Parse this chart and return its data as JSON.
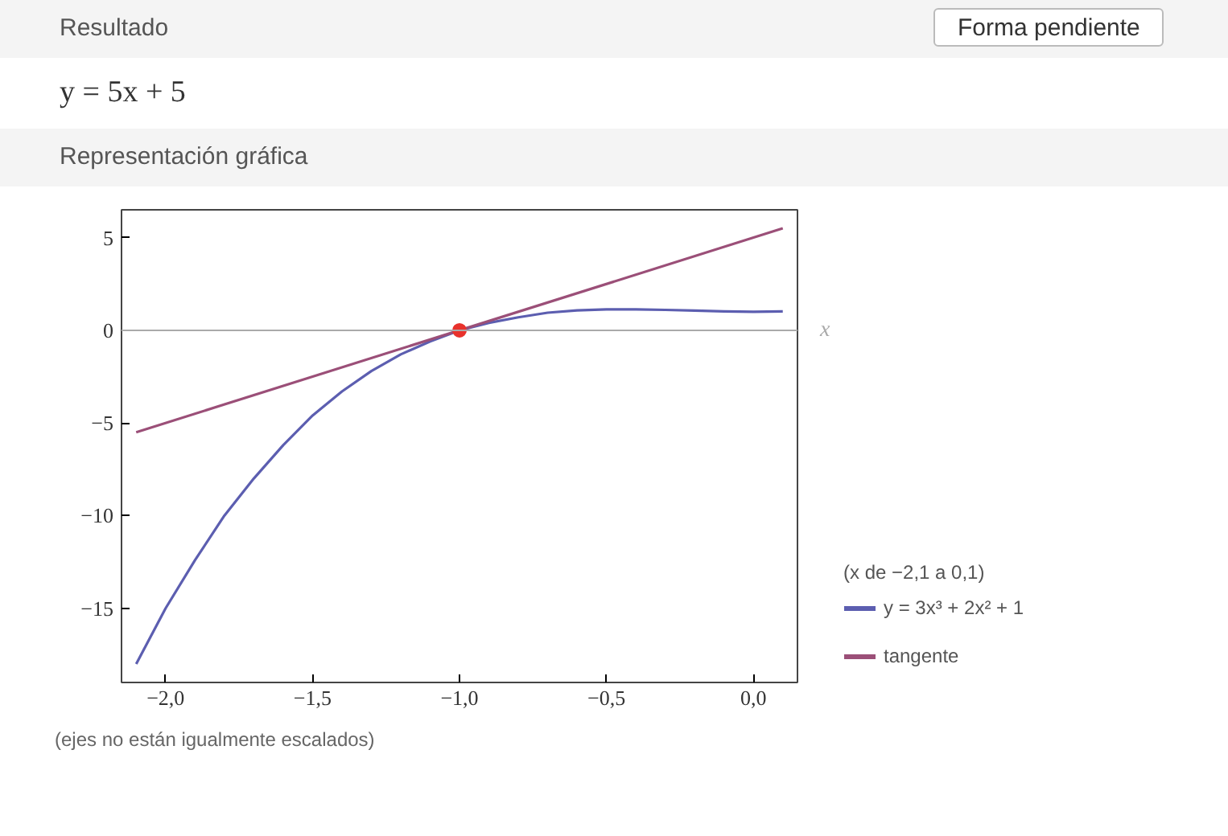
{
  "chart_data": {
    "type": "line",
    "annotations": [
      "Resultado",
      "Forma pendiente",
      "y = 5x + 5",
      "Representación gráfica",
      "(ejes no están igualmente escalados)"
    ],
    "legend_title": "(x de −2,1 a 0,1)",
    "xlabel": "x",
    "x": [
      -2.1,
      -2.0,
      -1.9,
      -1.8,
      -1.7,
      -1.6,
      -1.5,
      -1.4,
      -1.3,
      -1.2,
      -1.1,
      -1.0,
      -0.9,
      -0.8,
      -0.7,
      -0.6,
      -0.5,
      -0.4,
      -0.3,
      -0.2,
      -0.1,
      0.0,
      0.1
    ],
    "series": [
      {
        "name": "y = 3x³ + 2x² + 1",
        "color": "#5c5eb0",
        "values": [
          -18.0,
          -15.0,
          -12.4,
          -10.0,
          -8.0,
          -6.2,
          -4.6,
          -3.3,
          -2.2,
          -1.3,
          -0.6,
          0.0,
          0.4,
          0.7,
          0.95,
          1.07,
          1.13,
          1.13,
          1.1,
          1.06,
          1.02,
          1.0,
          1.02
        ]
      },
      {
        "name": "tangente",
        "color": "#9b4f78",
        "x": [
          -2.1,
          0.1
        ],
        "values": [
          -5.5,
          5.5
        ]
      },
      {
        "type": "scatter",
        "color": "#e8322c",
        "x": [
          -1.0
        ],
        "values": [
          0.0
        ]
      }
    ],
    "xlim": [
      -2.15,
      0.15
    ],
    "ylim": [
      -19,
      6.5
    ],
    "xticks": [
      {
        "value": -2.0,
        "label": "−2,0"
      },
      {
        "value": -1.5,
        "label": "−1,5"
      },
      {
        "value": -1.0,
        "label": "−1,0"
      },
      {
        "value": -0.5,
        "label": "−0,5"
      },
      {
        "value": 0.0,
        "label": "0,0"
      }
    ],
    "yticks": [
      {
        "value": 5,
        "label": "5"
      },
      {
        "value": 0,
        "label": "0"
      },
      {
        "value": -5,
        "label": "−5"
      },
      {
        "value": -10,
        "label": "−10"
      },
      {
        "value": -15,
        "label": "−15"
      }
    ],
    "ref_lines": [
      {
        "axis": "y",
        "value": 0,
        "color": "#aaaaaa"
      }
    ],
    "grid": false,
    "legend": "bottom right",
    "line_style": "solid"
  }
}
